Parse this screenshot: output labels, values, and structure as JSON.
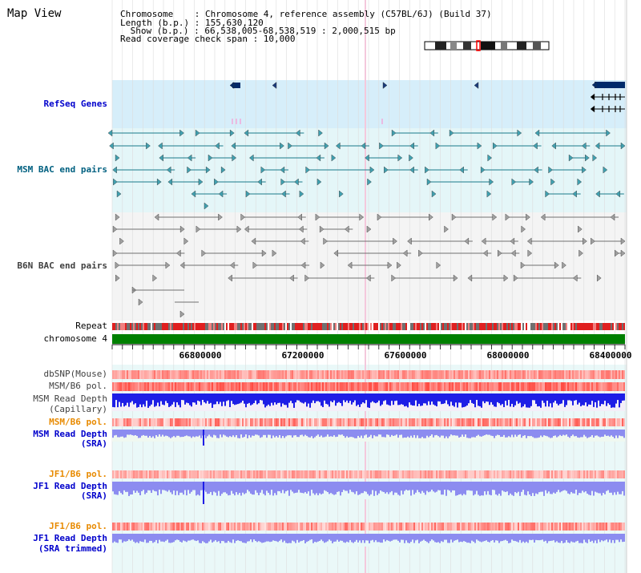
{
  "page": {
    "title": "Map View"
  },
  "info": {
    "chromosome_line": "Chromosome    : Chromosome 4, reference assembly (C57BL/6J) (Build 37)",
    "length_line": "Length (b.p.) : 155,630,120",
    "show_line": " Show (b.p.) : 66,538,005-68,538,519 : 2,000,515 bp",
    "span_line": "Read coverage check span : 10,000"
  },
  "tracks": {
    "refseq_label": "RefSeq Genes",
    "msm_bac_label": "MSM BAC end pairs",
    "b6n_bac_label": "B6N BAC end pairs",
    "repeat_label": "Repeat",
    "chromosome_label": "chromosome 4",
    "dbsnp_label": "dbSNP(Mouse)",
    "msm_b6_pol_label": "MSM/B6 pol.",
    "msm_depth_cap_label_1": "MSM Read Depth",
    "msm_depth_cap_label_2": "(Capillary)",
    "msm_b6_pol2_label": "MSM/B6 pol.",
    "msm_depth_sra_label_1": "MSM Read Depth",
    "msm_depth_sra_label_2": "(SRA)",
    "jf1_b6_pol_label": "JF1/B6 pol.",
    "jf1_depth_sra_label_1": "JF1 Read Depth",
    "jf1_depth_sra_label_2": "(SRA)",
    "jf1_b6_pol2_label": "JF1/B6 pol.",
    "jf1_depth_trim_label_1": "JF1 Read Depth",
    "jf1_depth_trim_label_2": "(SRA trimmed)"
  },
  "axis": {
    "ticks": [
      "66800000",
      "67200000",
      "67600000",
      "68000000",
      "68400000"
    ]
  },
  "colors": {
    "refseq_bg": "#d6eefa",
    "msm_bg": "#e4f6f8",
    "b6n_bg": "#f2f2f2",
    "lower_bg": "#e8f8f8",
    "chromosome_bar": "#008000",
    "teal": "#1a7a8a",
    "gray": "#707070",
    "depth_blue": "#1e1ee6",
    "depth_light": "#8c8cf0"
  }
}
